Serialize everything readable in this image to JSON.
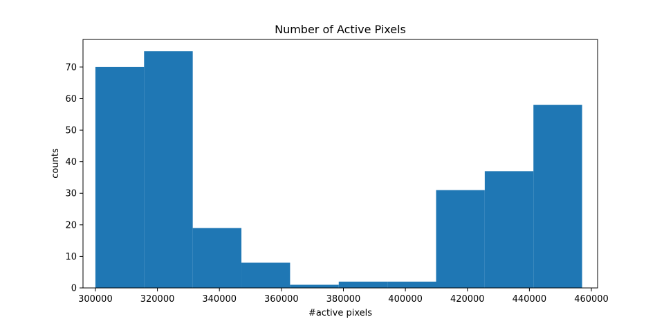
{
  "chart_data": {
    "type": "bar",
    "title": "Number of Active Pixels",
    "xlabel": "#active pixels",
    "ylabel": "counts",
    "xlim": [
      296000,
      462000
    ],
    "ylim": [
      0,
      78.75
    ],
    "x_ticks": [
      300000,
      320000,
      340000,
      360000,
      380000,
      400000,
      420000,
      440000,
      460000
    ],
    "y_ticks": [
      0,
      10,
      20,
      30,
      40,
      50,
      60,
      70
    ],
    "grid": false,
    "color": "#1f77b4",
    "bin_edges": [
      300000,
      315700,
      331400,
      347100,
      362800,
      378500,
      394200,
      409900,
      425600,
      441300,
      457000
    ],
    "values": [
      70,
      75,
      19,
      8,
      1,
      2,
      2,
      31,
      37,
      58
    ]
  }
}
